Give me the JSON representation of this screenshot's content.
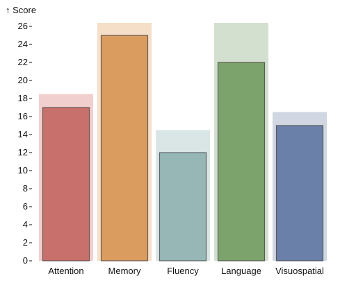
{
  "chart_data": {
    "type": "bar",
    "ylabel": "↑ Score",
    "categories": [
      "Attention",
      "Memory",
      "Fluency",
      "Language",
      "Visuospatial"
    ],
    "values": [
      17,
      25,
      12,
      22,
      15
    ],
    "max_values": [
      18.5,
      26.5,
      14.5,
      26.5,
      16.5
    ],
    "colors": [
      "#c8706b",
      "#db9c5f",
      "#96b7b6",
      "#7da36c",
      "#6b80a8"
    ],
    "background_colors": [
      "#f0cfce",
      "#f6dfc8",
      "#dae6e6",
      "#d4e0cf",
      "#d0d7e3"
    ],
    "ylim": [
      0,
      26
    ],
    "yticks": [
      0,
      2,
      4,
      6,
      8,
      10,
      12,
      14,
      16,
      18,
      20,
      22,
      24,
      26
    ],
    "grid": false,
    "legend": "none"
  }
}
